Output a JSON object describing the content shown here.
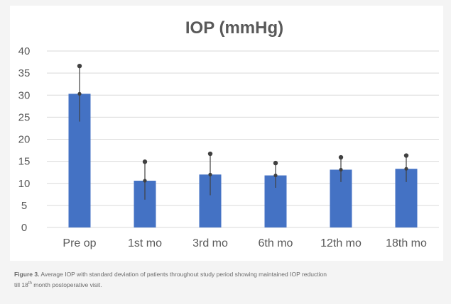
{
  "chart_data": {
    "type": "bar",
    "title": "IOP (mmHg)",
    "categories": [
      "Pre op",
      "1st mo",
      "3rd mo",
      "6th mo",
      "12th mo",
      "18th mo"
    ],
    "series": [
      {
        "values": [
          30.3,
          10.6,
          12.0,
          11.8,
          13.1,
          13.3
        ],
        "error": [
          6.3,
          4.3,
          4.7,
          2.8,
          2.8,
          3.0
        ]
      }
    ],
    "ylim": [
      0,
      40
    ],
    "yticks": [
      0,
      5,
      10,
      15,
      20,
      25,
      30,
      35,
      40
    ],
    "grid": true,
    "legend": "none",
    "bar_color": "#4472c4",
    "error_bar_color": "#404040"
  },
  "caption": {
    "lead": "Figure 3.",
    "line1": "Average IOP with standard deviation of patients throughout study period showing maintained IOP reduction",
    "line2_pre": "till 18",
    "line2_sup": "th",
    "line2_post": "month postoperative visit."
  }
}
